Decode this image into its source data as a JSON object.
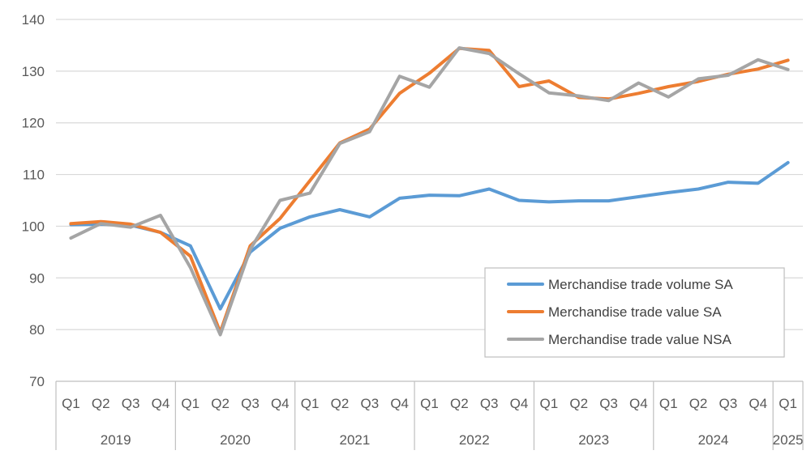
{
  "chart_data": {
    "type": "line",
    "title": "",
    "xlabel": "",
    "ylabel": "",
    "ylim": [
      70,
      140
    ],
    "yticks": [
      70,
      80,
      90,
      100,
      110,
      120,
      130,
      140
    ],
    "grid": "horizontal",
    "legend_position": "lower-right",
    "categories": [
      "Q1",
      "Q2",
      "Q3",
      "Q4",
      "Q1",
      "Q2",
      "Q3",
      "Q4",
      "Q1",
      "Q2",
      "Q3",
      "Q4",
      "Q1",
      "Q2",
      "Q3",
      "Q4",
      "Q1",
      "Q2",
      "Q3",
      "Q4",
      "Q1",
      "Q2",
      "Q3",
      "Q4",
      "Q1"
    ],
    "years": [
      {
        "label": "2019",
        "count": 4
      },
      {
        "label": "2020",
        "count": 4
      },
      {
        "label": "2021",
        "count": 4
      },
      {
        "label": "2022",
        "count": 4
      },
      {
        "label": "2023",
        "count": 4
      },
      {
        "label": "2024",
        "count": 4
      },
      {
        "label": "2025",
        "count": 1
      }
    ],
    "series": [
      {
        "name": "Merchandise trade volume SA",
        "color": "#5B9BD5",
        "values": [
          100.3,
          100.4,
          100.2,
          98.8,
          96.2,
          84.0,
          95.0,
          99.6,
          101.8,
          103.2,
          101.8,
          105.4,
          106.0,
          105.9,
          107.2,
          105.0,
          104.7,
          104.9,
          104.9,
          105.7,
          106.5,
          107.2,
          108.5,
          108.3,
          112.3
        ]
      },
      {
        "name": "Merchandise trade value  SA",
        "color": "#ED7D31",
        "values": [
          100.5,
          100.9,
          100.4,
          98.8,
          94.2,
          79.5,
          96.2,
          101.5,
          108.8,
          116.1,
          118.8,
          125.7,
          129.6,
          134.4,
          134.0,
          127.0,
          128.1,
          124.9,
          124.6,
          125.7,
          127.0,
          128.0,
          129.4,
          130.4,
          132.1
        ]
      },
      {
        "name": "Merchandise trade value NSA",
        "color": "#A5A5A5",
        "values": [
          97.7,
          100.5,
          99.8,
          102.1,
          92.0,
          79.0,
          95.5,
          105.0,
          106.4,
          116.0,
          118.3,
          129.0,
          126.9,
          134.5,
          133.4,
          129.5,
          125.8,
          125.2,
          124.3,
          127.7,
          125.0,
          128.5,
          129.2,
          132.2,
          130.3
        ]
      }
    ]
  }
}
